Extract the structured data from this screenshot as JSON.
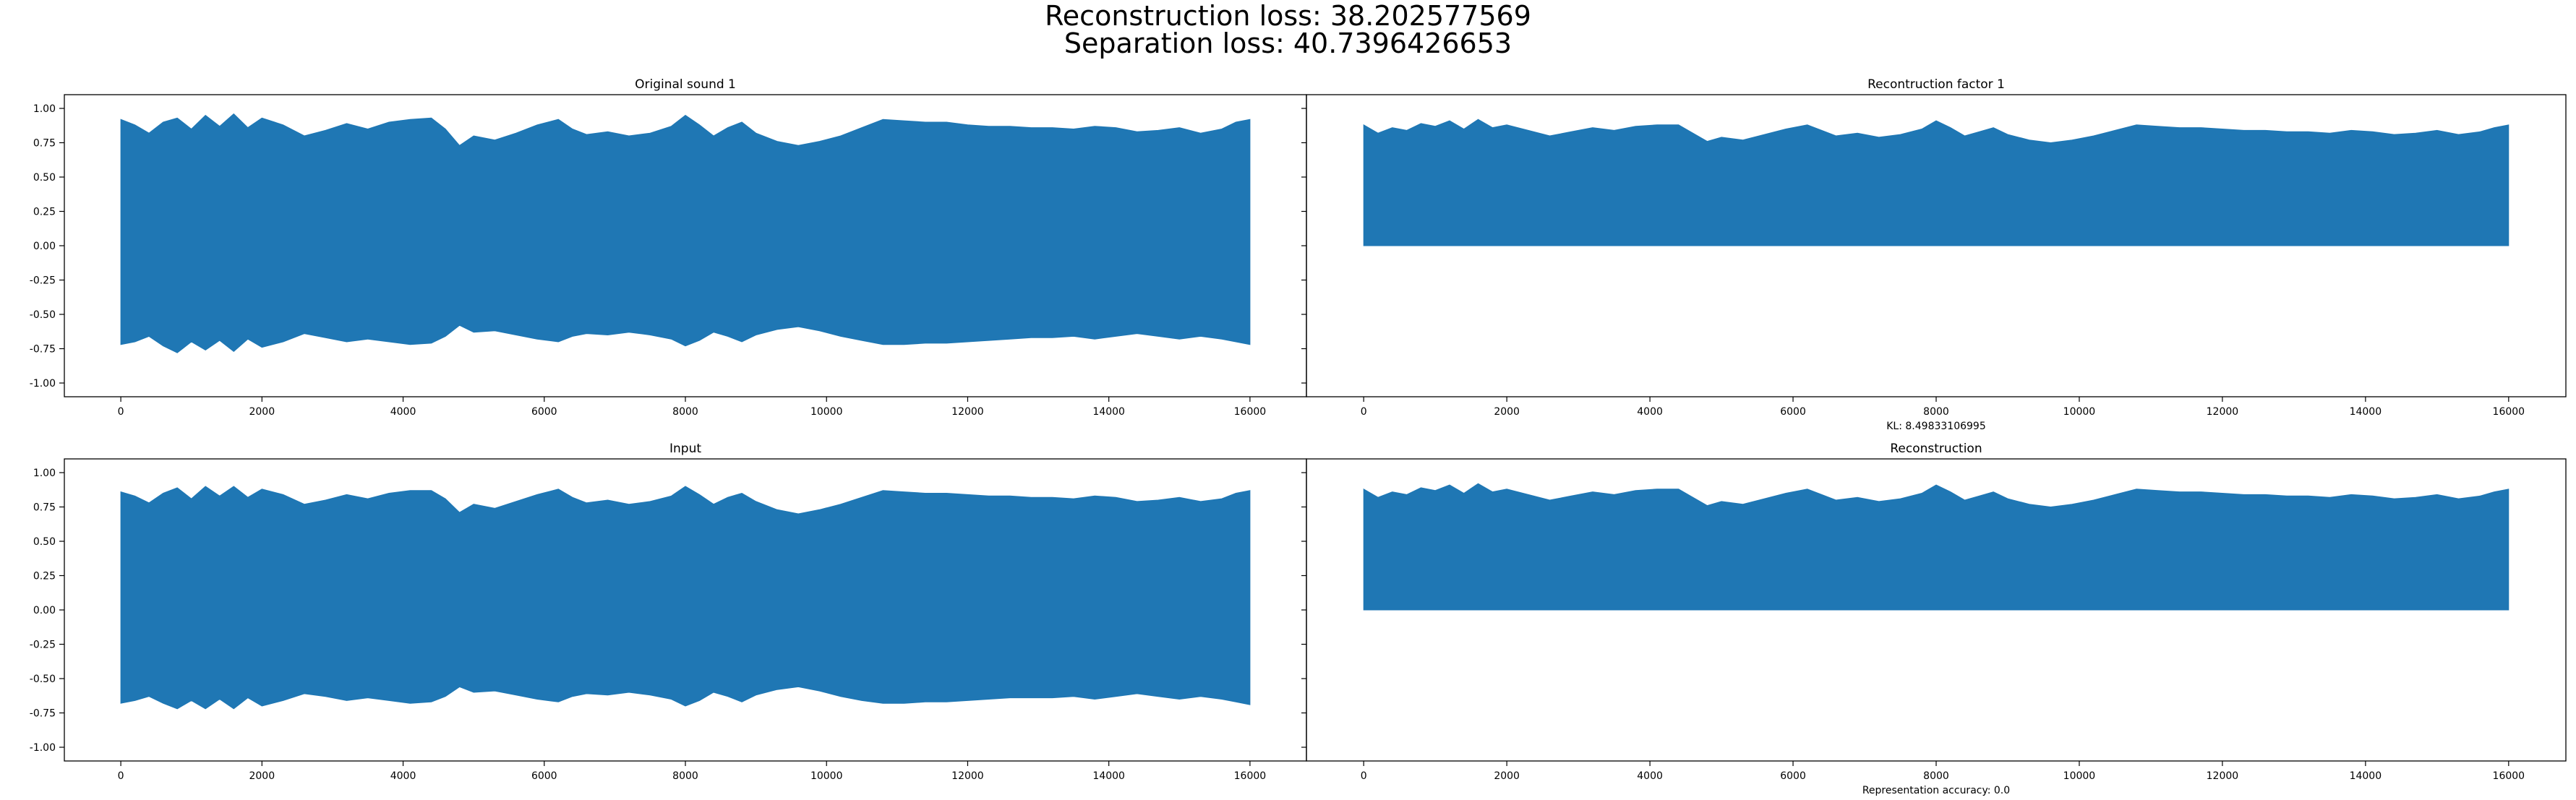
{
  "figure": {
    "suptitle_line1": "Reconstruction loss: 38.202577569",
    "suptitle_line2": "Separation loss: 40.7396426653",
    "fill_color": "#1f77b4"
  },
  "chart_data": [
    {
      "type": "area",
      "title": "Original sound 1",
      "xlabel": "",
      "ylabel": "",
      "xlim": [
        -800,
        16800
      ],
      "ylim": [
        -1.1,
        1.1
      ],
      "xticks": [
        "0",
        "2000",
        "4000",
        "6000",
        "8000",
        "10000",
        "12000",
        "14000",
        "16000"
      ],
      "yticks": [
        "1.00",
        "0.75",
        "0.50",
        "0.25",
        "0.00",
        "-0.25",
        "-0.50",
        "-0.75",
        "-1.00"
      ],
      "show_yticklabels": true,
      "note": "",
      "envelope": {
        "x": [
          0,
          200,
          400,
          600,
          800,
          1000,
          1200,
          1400,
          1600,
          1800,
          2000,
          2300,
          2600,
          2900,
          3200,
          3500,
          3800,
          4100,
          4400,
          4600,
          4800,
          5000,
          5300,
          5600,
          5900,
          6200,
          6400,
          6600,
          6900,
          7200,
          7500,
          7800,
          8000,
          8200,
          8400,
          8600,
          8800,
          9000,
          9300,
          9600,
          9900,
          10200,
          10500,
          10800,
          11100,
          11400,
          11700,
          12000,
          12300,
          12600,
          12900,
          13200,
          13500,
          13800,
          14100,
          14400,
          14700,
          15000,
          15300,
          15600,
          15800,
          16000
        ],
        "upper": [
          0.92,
          0.88,
          0.82,
          0.9,
          0.93,
          0.85,
          0.95,
          0.87,
          0.96,
          0.86,
          0.93,
          0.88,
          0.8,
          0.84,
          0.89,
          0.85,
          0.9,
          0.92,
          0.93,
          0.85,
          0.73,
          0.8,
          0.77,
          0.82,
          0.88,
          0.92,
          0.85,
          0.81,
          0.83,
          0.8,
          0.82,
          0.87,
          0.95,
          0.88,
          0.8,
          0.86,
          0.9,
          0.82,
          0.76,
          0.73,
          0.76,
          0.8,
          0.86,
          0.92,
          0.91,
          0.9,
          0.9,
          0.88,
          0.87,
          0.87,
          0.86,
          0.86,
          0.85,
          0.87,
          0.86,
          0.83,
          0.84,
          0.86,
          0.82,
          0.85,
          0.9,
          0.92
        ],
        "lower": [
          -0.72,
          -0.7,
          -0.66,
          -0.73,
          -0.78,
          -0.7,
          -0.76,
          -0.69,
          -0.77,
          -0.68,
          -0.74,
          -0.7,
          -0.64,
          -0.67,
          -0.7,
          -0.68,
          -0.7,
          -0.72,
          -0.71,
          -0.66,
          -0.58,
          -0.63,
          -0.62,
          -0.65,
          -0.68,
          -0.7,
          -0.66,
          -0.64,
          -0.65,
          -0.63,
          -0.65,
          -0.68,
          -0.73,
          -0.69,
          -0.63,
          -0.66,
          -0.7,
          -0.65,
          -0.61,
          -0.59,
          -0.62,
          -0.66,
          -0.69,
          -0.72,
          -0.72,
          -0.71,
          -0.71,
          -0.7,
          -0.69,
          -0.68,
          -0.67,
          -0.67,
          -0.66,
          -0.68,
          -0.66,
          -0.64,
          -0.66,
          -0.68,
          -0.66,
          -0.68,
          -0.7,
          -0.72
        ]
      }
    },
    {
      "type": "area",
      "title": "Recontruction factor 1",
      "xlabel": "",
      "ylabel": "",
      "xlim": [
        -800,
        16800
      ],
      "ylim": [
        -1.1,
        1.1
      ],
      "xticks": [
        "0",
        "2000",
        "4000",
        "6000",
        "8000",
        "10000",
        "12000",
        "14000",
        "16000"
      ],
      "yticks": [
        "1.00",
        "0.75",
        "0.50",
        "0.25",
        "0.00",
        "-0.25",
        "-0.50",
        "-0.75",
        "-1.00"
      ],
      "show_yticklabels": false,
      "note": "KL: 8.49833106995",
      "envelope": {
        "x": [
          0,
          200,
          400,
          600,
          800,
          1000,
          1200,
          1400,
          1600,
          1800,
          2000,
          2300,
          2600,
          2900,
          3200,
          3500,
          3800,
          4100,
          4400,
          4600,
          4800,
          5000,
          5300,
          5600,
          5900,
          6200,
          6400,
          6600,
          6900,
          7200,
          7500,
          7800,
          8000,
          8200,
          8400,
          8600,
          8800,
          9000,
          9300,
          9600,
          9900,
          10200,
          10500,
          10800,
          11100,
          11400,
          11700,
          12000,
          12300,
          12600,
          12900,
          13200,
          13500,
          13800,
          14100,
          14400,
          14700,
          15000,
          15300,
          15600,
          15800,
          16000
        ],
        "upper": [
          0.88,
          0.82,
          0.86,
          0.84,
          0.89,
          0.87,
          0.91,
          0.85,
          0.92,
          0.86,
          0.88,
          0.84,
          0.8,
          0.83,
          0.86,
          0.84,
          0.87,
          0.88,
          0.88,
          0.82,
          0.76,
          0.79,
          0.77,
          0.81,
          0.85,
          0.88,
          0.84,
          0.8,
          0.82,
          0.79,
          0.81,
          0.85,
          0.91,
          0.86,
          0.8,
          0.83,
          0.86,
          0.81,
          0.77,
          0.75,
          0.77,
          0.8,
          0.84,
          0.88,
          0.87,
          0.86,
          0.86,
          0.85,
          0.84,
          0.84,
          0.83,
          0.83,
          0.82,
          0.84,
          0.83,
          0.81,
          0.82,
          0.84,
          0.81,
          0.83,
          0.86,
          0.88
        ],
        "lower": [
          0,
          0,
          0,
          0,
          0,
          0,
          0,
          0,
          0,
          0,
          0,
          0,
          0,
          0,
          0,
          0,
          0,
          0,
          0,
          0,
          0,
          0,
          0,
          0,
          0,
          0,
          0,
          0,
          0,
          0,
          0,
          0,
          0,
          0,
          0,
          0,
          0,
          0,
          0,
          0,
          0,
          0,
          0,
          0,
          0,
          0,
          0,
          0,
          0,
          0,
          0,
          0,
          0,
          0,
          0,
          0,
          0,
          0,
          0,
          0,
          0,
          0
        ]
      }
    },
    {
      "type": "area",
      "title": "Input",
      "xlabel": "",
      "ylabel": "",
      "xlim": [
        -800,
        16800
      ],
      "ylim": [
        -1.1,
        1.1
      ],
      "xticks": [
        "0",
        "2000",
        "4000",
        "6000",
        "8000",
        "10000",
        "12000",
        "14000",
        "16000"
      ],
      "yticks": [
        "1.00",
        "0.75",
        "0.50",
        "0.25",
        "0.00",
        "-0.25",
        "-0.50",
        "-0.75",
        "-1.00"
      ],
      "show_yticklabels": true,
      "note": "",
      "envelope": {
        "x": [
          0,
          200,
          400,
          600,
          800,
          1000,
          1200,
          1400,
          1600,
          1800,
          2000,
          2300,
          2600,
          2900,
          3200,
          3500,
          3800,
          4100,
          4400,
          4600,
          4800,
          5000,
          5300,
          5600,
          5900,
          6200,
          6400,
          6600,
          6900,
          7200,
          7500,
          7800,
          8000,
          8200,
          8400,
          8600,
          8800,
          9000,
          9300,
          9600,
          9900,
          10200,
          10500,
          10800,
          11100,
          11400,
          11700,
          12000,
          12300,
          12600,
          12900,
          13200,
          13500,
          13800,
          14100,
          14400,
          14700,
          15000,
          15300,
          15600,
          15800,
          16000
        ],
        "upper": [
          0.86,
          0.83,
          0.78,
          0.85,
          0.89,
          0.81,
          0.9,
          0.83,
          0.9,
          0.82,
          0.88,
          0.84,
          0.77,
          0.8,
          0.84,
          0.81,
          0.85,
          0.87,
          0.87,
          0.81,
          0.71,
          0.77,
          0.74,
          0.79,
          0.84,
          0.88,
          0.82,
          0.78,
          0.8,
          0.77,
          0.79,
          0.83,
          0.9,
          0.84,
          0.77,
          0.82,
          0.85,
          0.79,
          0.73,
          0.7,
          0.73,
          0.77,
          0.82,
          0.87,
          0.86,
          0.85,
          0.85,
          0.84,
          0.83,
          0.83,
          0.82,
          0.82,
          0.81,
          0.83,
          0.82,
          0.79,
          0.8,
          0.82,
          0.79,
          0.81,
          0.85,
          0.87
        ],
        "lower": [
          -0.68,
          -0.66,
          -0.63,
          -0.68,
          -0.72,
          -0.66,
          -0.72,
          -0.65,
          -0.72,
          -0.64,
          -0.7,
          -0.66,
          -0.61,
          -0.63,
          -0.66,
          -0.64,
          -0.66,
          -0.68,
          -0.67,
          -0.63,
          -0.56,
          -0.6,
          -0.59,
          -0.62,
          -0.65,
          -0.67,
          -0.63,
          -0.61,
          -0.62,
          -0.6,
          -0.62,
          -0.65,
          -0.7,
          -0.66,
          -0.6,
          -0.63,
          -0.67,
          -0.62,
          -0.58,
          -0.56,
          -0.59,
          -0.63,
          -0.66,
          -0.68,
          -0.68,
          -0.67,
          -0.67,
          -0.66,
          -0.65,
          -0.64,
          -0.64,
          -0.64,
          -0.63,
          -0.65,
          -0.63,
          -0.61,
          -0.63,
          -0.65,
          -0.63,
          -0.65,
          -0.67,
          -0.69
        ]
      }
    },
    {
      "type": "area",
      "title": "Reconstruction",
      "xlabel": "",
      "ylabel": "",
      "xlim": [
        -800,
        16800
      ],
      "ylim": [
        -1.1,
        1.1
      ],
      "xticks": [
        "0",
        "2000",
        "4000",
        "6000",
        "8000",
        "10000",
        "12000",
        "14000",
        "16000"
      ],
      "yticks": [
        "1.00",
        "0.75",
        "0.50",
        "0.25",
        "0.00",
        "-0.25",
        "-0.50",
        "-0.75",
        "-1.00"
      ],
      "show_yticklabels": false,
      "note": "Representation accuracy: 0.0",
      "envelope": {
        "x": [
          0,
          200,
          400,
          600,
          800,
          1000,
          1200,
          1400,
          1600,
          1800,
          2000,
          2300,
          2600,
          2900,
          3200,
          3500,
          3800,
          4100,
          4400,
          4600,
          4800,
          5000,
          5300,
          5600,
          5900,
          6200,
          6400,
          6600,
          6900,
          7200,
          7500,
          7800,
          8000,
          8200,
          8400,
          8600,
          8800,
          9000,
          9300,
          9600,
          9900,
          10200,
          10500,
          10800,
          11100,
          11400,
          11700,
          12000,
          12300,
          12600,
          12900,
          13200,
          13500,
          13800,
          14100,
          14400,
          14700,
          15000,
          15300,
          15600,
          15800,
          16000
        ],
        "upper": [
          0.88,
          0.82,
          0.86,
          0.84,
          0.89,
          0.87,
          0.91,
          0.85,
          0.92,
          0.86,
          0.88,
          0.84,
          0.8,
          0.83,
          0.86,
          0.84,
          0.87,
          0.88,
          0.88,
          0.82,
          0.76,
          0.79,
          0.77,
          0.81,
          0.85,
          0.88,
          0.84,
          0.8,
          0.82,
          0.79,
          0.81,
          0.85,
          0.91,
          0.86,
          0.8,
          0.83,
          0.86,
          0.81,
          0.77,
          0.75,
          0.77,
          0.8,
          0.84,
          0.88,
          0.87,
          0.86,
          0.86,
          0.85,
          0.84,
          0.84,
          0.83,
          0.83,
          0.82,
          0.84,
          0.83,
          0.81,
          0.82,
          0.84,
          0.81,
          0.83,
          0.86,
          0.88
        ],
        "lower": [
          0,
          0,
          0,
          0,
          0,
          0,
          0,
          0,
          0,
          0,
          0,
          0,
          0,
          0,
          0,
          0,
          0,
          0,
          0,
          0,
          0,
          0,
          0,
          0,
          0,
          0,
          0,
          0,
          0,
          0,
          0,
          0,
          0,
          0,
          0,
          0,
          0,
          0,
          0,
          0,
          0,
          0,
          0,
          0,
          0,
          0,
          0,
          0,
          0,
          0,
          0,
          0,
          0,
          0,
          0,
          0,
          0,
          0,
          0,
          0,
          0,
          0
        ]
      }
    }
  ]
}
